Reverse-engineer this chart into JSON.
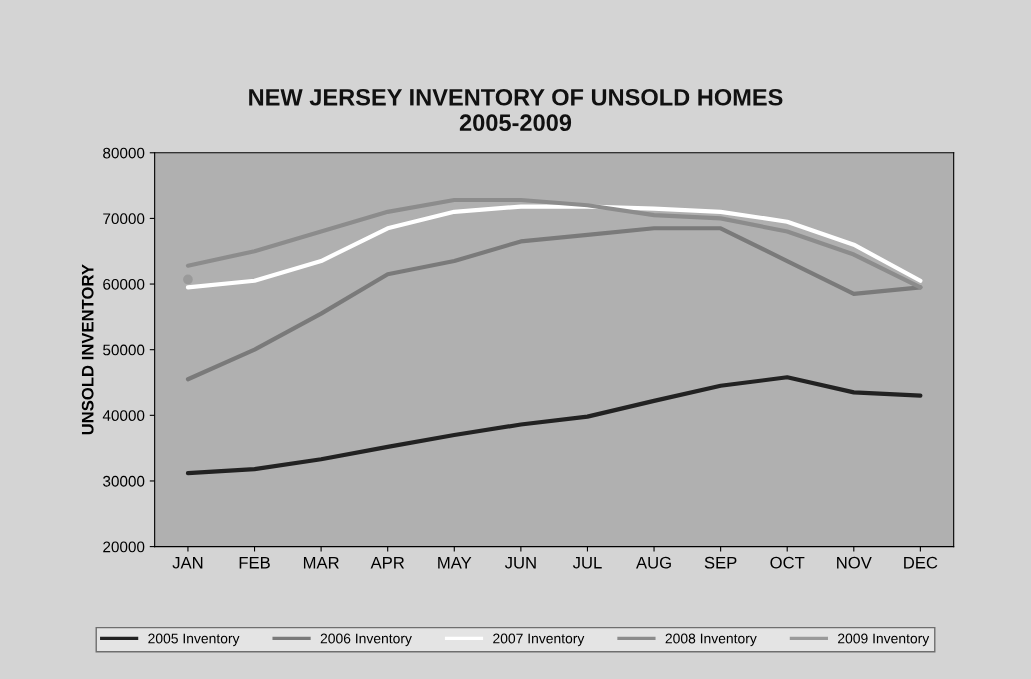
{
  "chart_data": {
    "type": "line",
    "title": "NEW JERSEY INVENTORY OF UNSOLD HOMES\n2005-2009",
    "ylabel": "UNSOLD INVENTORY",
    "categories": [
      "JAN",
      "FEB",
      "MAR",
      "APR",
      "MAY",
      "JUN",
      "JUL",
      "AUG",
      "SEP",
      "OCT",
      "NOV",
      "DEC"
    ],
    "ylim": [
      20000,
      80000
    ],
    "yticks": [
      20000,
      30000,
      40000,
      50000,
      60000,
      70000,
      80000
    ],
    "grid": false,
    "legend": "bottom",
    "marker": "none",
    "line_style": "solid",
    "series": [
      {
        "name": "2005 Inventory",
        "color": "#222222",
        "values": [
          31200,
          31800,
          33300,
          35200,
          37000,
          38600,
          39800,
          42200,
          44500,
          45800,
          43500,
          43000
        ]
      },
      {
        "name": "2006 Inventory",
        "color": "#7a7a7a",
        "values": [
          45500,
          50000,
          55500,
          61500,
          63500,
          66500,
          67500,
          68500,
          68500,
          63500,
          58500,
          59500
        ]
      },
      {
        "name": "2007 Inventory",
        "color": "#ffffff",
        "values": [
          59500,
          60500,
          63500,
          68500,
          71000,
          71800,
          71800,
          71500,
          71000,
          69500,
          66000,
          60500
        ]
      },
      {
        "name": "2008 Inventory",
        "color": "#8c8c8c",
        "values": [
          62800,
          65000,
          68000,
          71000,
          72800,
          72800,
          72000,
          70500,
          70000,
          68000,
          64500,
          59500
        ]
      },
      {
        "name": "2009 Inventory",
        "color": "#9a9a9a",
        "marker": "circle",
        "values": [
          60700,
          null,
          null,
          null,
          null,
          null,
          null,
          null,
          null,
          null,
          null,
          null
        ]
      }
    ]
  }
}
